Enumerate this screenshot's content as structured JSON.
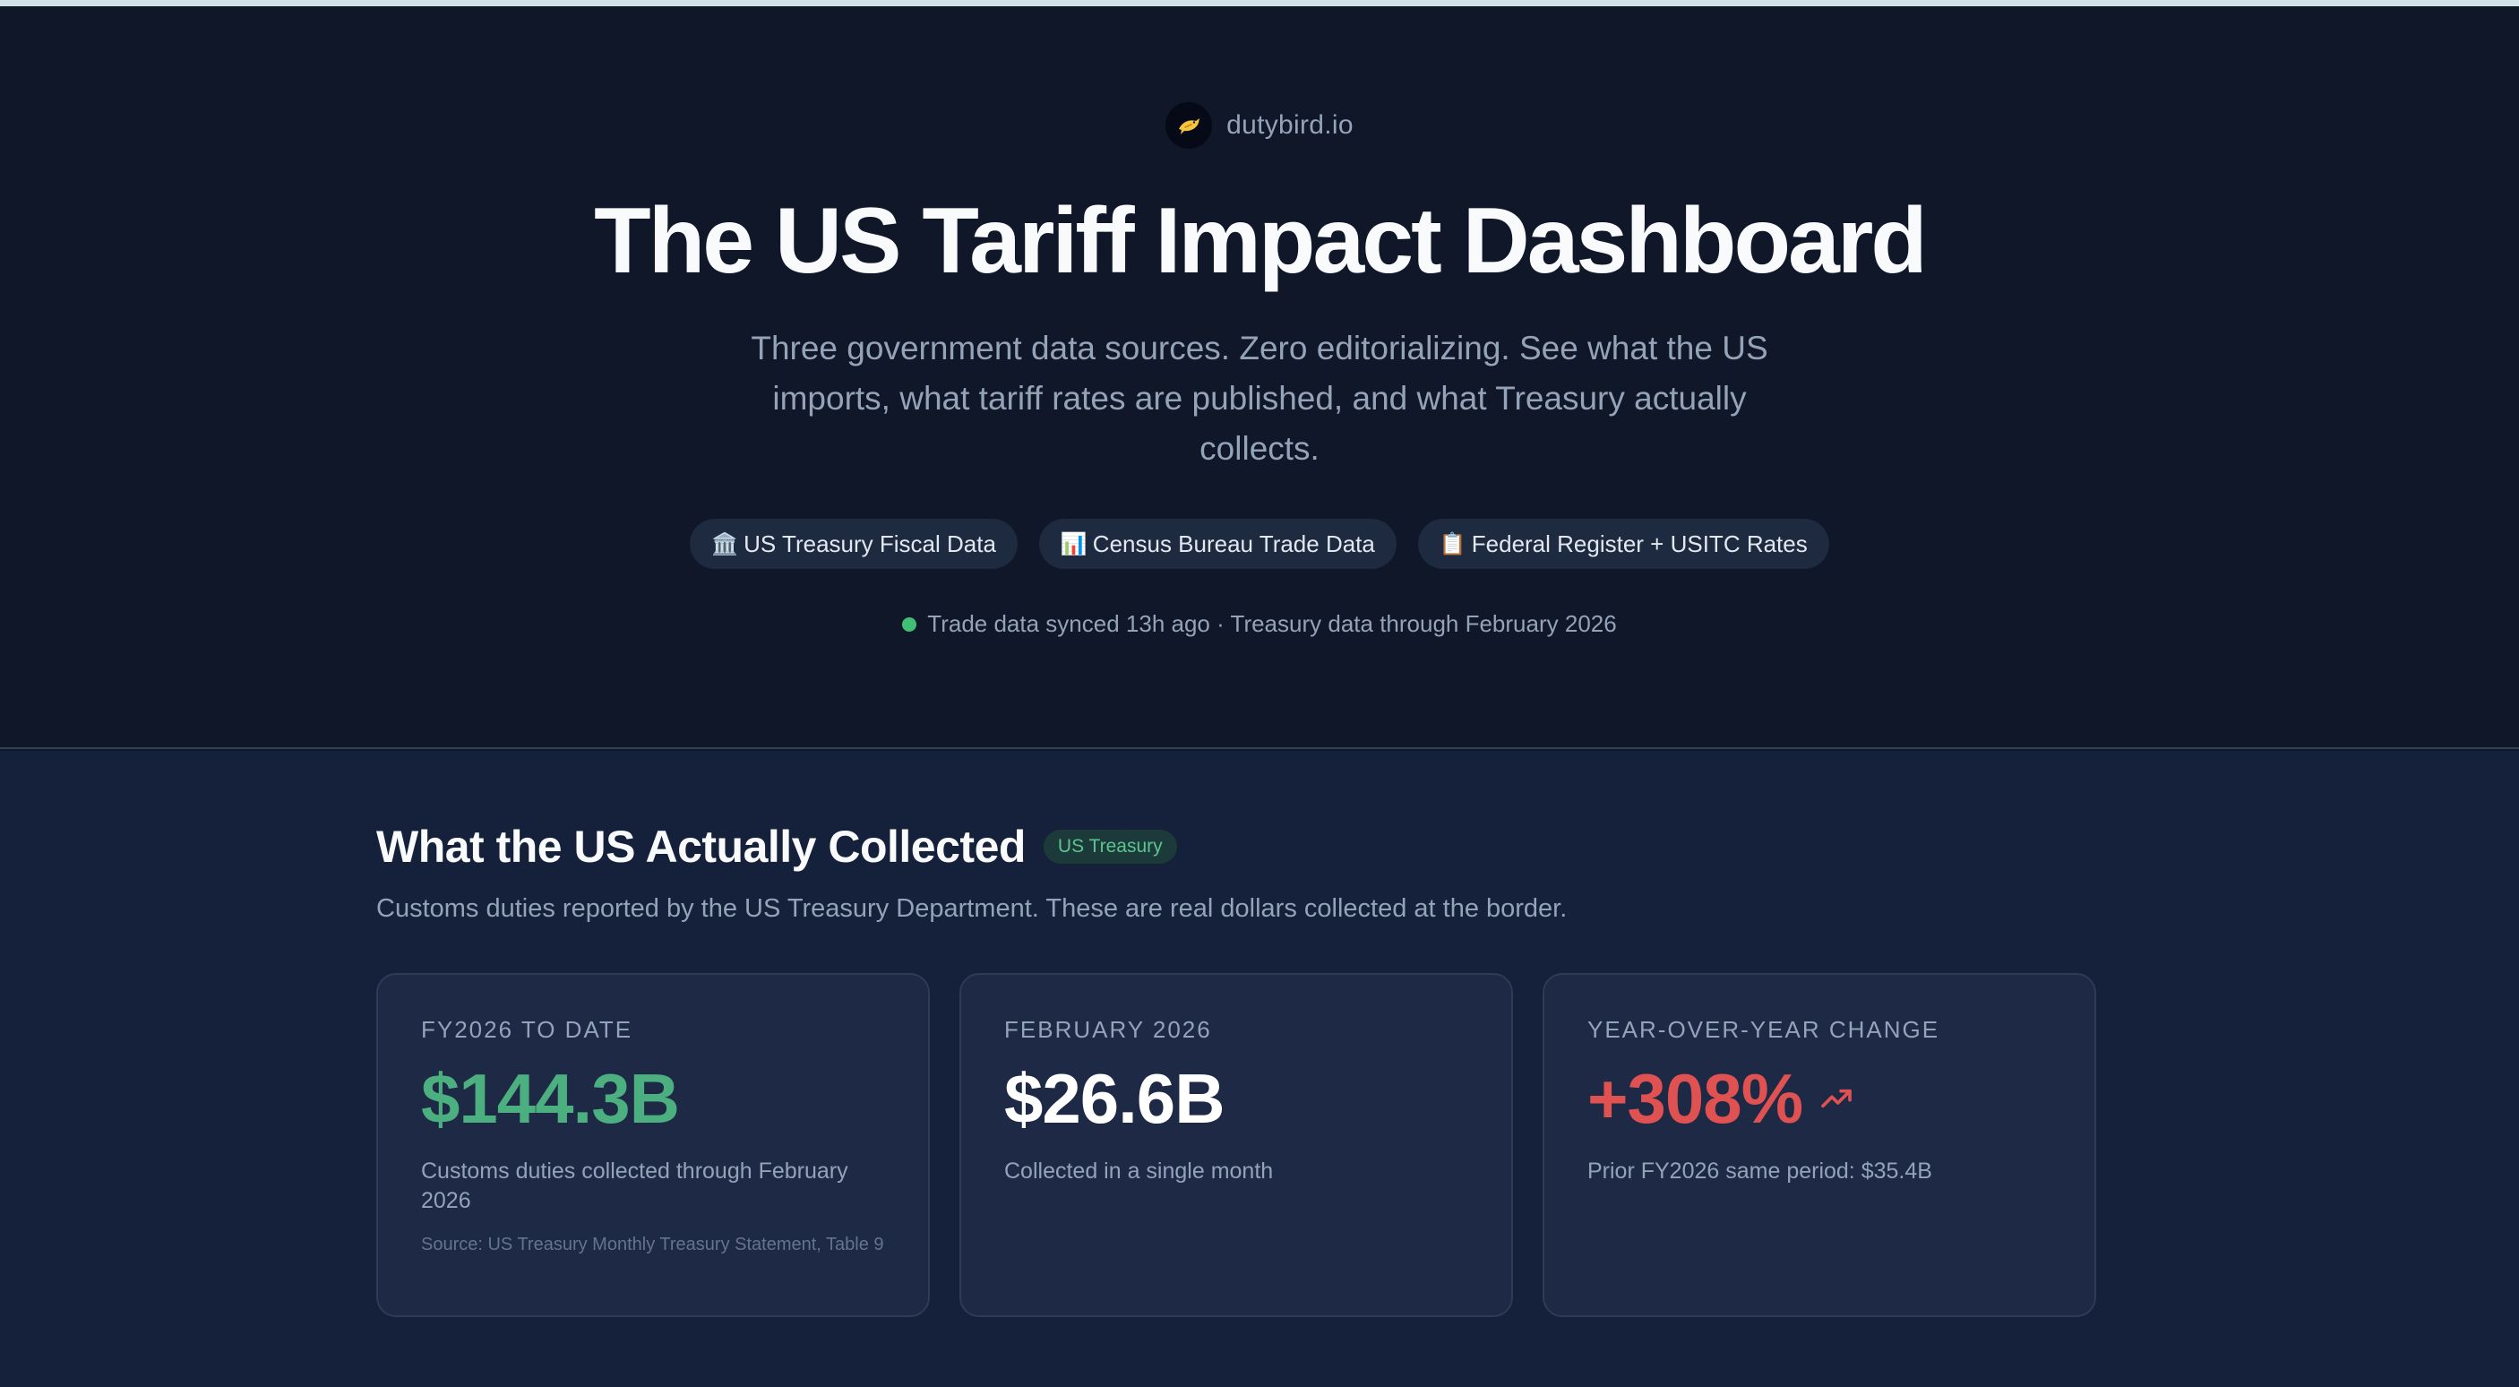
{
  "brand": {
    "name": "dutybird.io",
    "logo_icon": "bird-icon"
  },
  "hero": {
    "title": "The US Tariff Impact Dashboard",
    "subtitle": "Three government data sources. Zero editorializing. See what the US imports, what tariff rates are published, and what Treasury actually collects.",
    "sources": [
      {
        "icon": "🏛️",
        "label": "US Treasury Fiscal Data"
      },
      {
        "icon": "📊",
        "label": "Census Bureau Trade Data"
      },
      {
        "icon": "📋",
        "label": "Federal Register + USITC Rates"
      }
    ],
    "sync_status": "Trade data synced 13h ago · Treasury data through February 2026"
  },
  "collected": {
    "title": "What the US Actually Collected",
    "badge": "US Treasury",
    "description": "Customs duties reported by the US Treasury Department. These are real dollars collected at the border.",
    "cards": [
      {
        "label": "FY2026 TO DATE",
        "value": "$144.3B",
        "description": "Customs duties collected through February 2026",
        "source": "Source: US Treasury Monthly Treasury Statement, Table 9"
      },
      {
        "label": "FEBRUARY 2026",
        "value": "$26.6B",
        "description": "Collected in a single month"
      },
      {
        "label": "YEAR-OVER-YEAR CHANGE",
        "value": "+308%",
        "trend_icon": "trending-up-icon",
        "description": "Prior FY2026 same period: $35.4B"
      }
    ]
  },
  "colors": {
    "positive": "#4caf7f",
    "negative": "#e05252",
    "background": "#0f172a"
  }
}
